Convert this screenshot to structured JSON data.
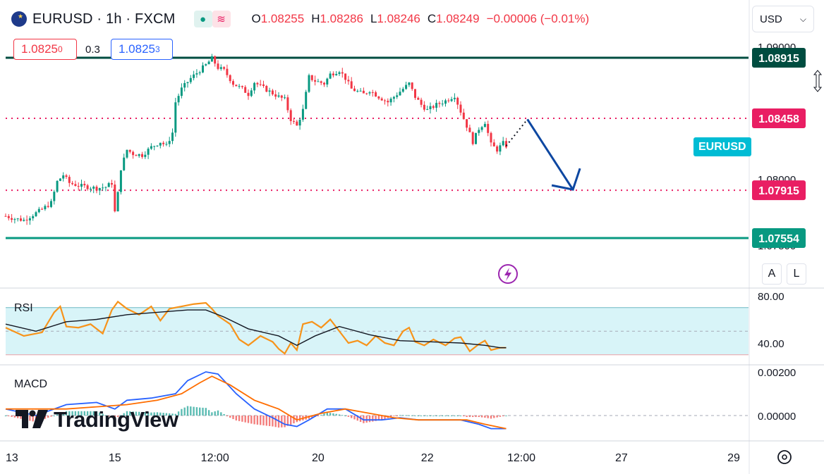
{
  "header": {
    "symbol": "EURUSD · 1h · FXCM",
    "o_key": "O",
    "o_val": "1.08255",
    "h_key": "H",
    "h_val": "1.08286",
    "l_key": "L",
    "l_val": "1.08246",
    "c_key": "C",
    "c_val": "1.08249",
    "change": "−0.00006 (−0.01%)",
    "pill_a": "●",
    "pill_b": "≋"
  },
  "quote": {
    "sell": "1.0825",
    "sell_sup": "0",
    "spread": "0.3",
    "buy": "1.0825",
    "buy_sup": "3"
  },
  "currency_select": {
    "value": "USD",
    "icon": "chevron-down-icon"
  },
  "scale_buttons": {
    "auto": "A",
    "log": "L"
  },
  "symbol_tag": "EURUSD",
  "logo_text": "TradingView",
  "colors": {
    "up": "#089981",
    "down": "#f23645",
    "rsi": "#f7931a",
    "macd": "#2962ff",
    "signal": "#ff6d00",
    "arrow": "#0d47a1",
    "level_dark": "#004d40",
    "level_dotted": "#e91e63",
    "level_green": "#089981",
    "rsi_band": "#d8f4f8",
    "tag": "#00bcd4"
  },
  "chart_data": [
    {
      "type": "candlestick",
      "title": "EURUSD · 1h · FXCM",
      "x_tick_labels": [
        "13",
        "15",
        "12:00",
        "20",
        "22",
        "12:00",
        "27",
        "29"
      ],
      "y_tick_labels": [
        "1.09000",
        "1.08000",
        "1.07500"
      ],
      "ylim": [
        1.0737,
        1.0912
      ],
      "price_levels": [
        {
          "value": 1.08915,
          "label": "1.08915",
          "style": "solid-dark"
        },
        {
          "value": 1.08458,
          "label": "1.08458",
          "style": "dotted"
        },
        {
          "value": 1.07915,
          "label": "1.07915",
          "style": "dotted"
        },
        {
          "value": 1.07554,
          "label": "1.07554",
          "style": "solid-green"
        }
      ],
      "close_path": [
        [
          0,
          1.0772
        ],
        [
          3,
          1.077
        ],
        [
          6,
          1.0769
        ],
        [
          9,
          1.0773
        ],
        [
          12,
          1.0777
        ],
        [
          15,
          1.0782
        ],
        [
          17,
          1.0798
        ],
        [
          19,
          1.0803
        ],
        [
          21,
          1.0797
        ],
        [
          24,
          1.0795
        ],
        [
          27,
          1.0794
        ],
        [
          30,
          1.0793
        ],
        [
          33,
          1.0794
        ],
        [
          35,
          1.0797
        ],
        [
          36,
          1.0775
        ],
        [
          37,
          1.0789
        ],
        [
          38,
          1.0808
        ],
        [
          40,
          1.0822
        ],
        [
          42,
          1.0819
        ],
        [
          45,
          1.0818
        ],
        [
          48,
          1.0824
        ],
        [
          51,
          1.0828
        ],
        [
          53,
          1.0825
        ],
        [
          55,
          1.0835
        ],
        [
          56,
          1.0858
        ],
        [
          58,
          1.0868
        ],
        [
          61,
          1.0876
        ],
        [
          64,
          1.0882
        ],
        [
          66,
          1.0886
        ],
        [
          68,
          1.0891
        ],
        [
          70,
          1.0884
        ],
        [
          72,
          1.0882
        ],
        [
          75,
          1.0872
        ],
        [
          78,
          1.0868
        ],
        [
          80,
          1.0864
        ],
        [
          82,
          1.0873
        ],
        [
          84,
          1.087
        ],
        [
          87,
          1.0866
        ],
        [
          90,
          1.0862
        ],
        [
          92,
          1.086
        ],
        [
          94,
          1.0845
        ],
        [
          96,
          1.084
        ],
        [
          98,
          1.0852
        ],
        [
          100,
          1.0877
        ],
        [
          102,
          1.0874
        ],
        [
          105,
          1.0872
        ],
        [
          107,
          1.0879
        ],
        [
          110,
          1.0882
        ],
        [
          112,
          1.0876
        ],
        [
          114,
          1.0868
        ],
        [
          116,
          1.0866
        ],
        [
          118,
          1.0864
        ],
        [
          120,
          1.0867
        ],
        [
          123,
          1.0862
        ],
        [
          126,
          1.0858
        ],
        [
          128,
          1.0862
        ],
        [
          131,
          1.0868
        ],
        [
          133,
          1.0872
        ],
        [
          135,
          1.0862
        ],
        [
          137,
          1.0856
        ],
        [
          139,
          1.0852
        ],
        [
          142,
          1.0856
        ],
        [
          145,
          1.0859
        ],
        [
          148,
          1.0863
        ],
        [
          150,
          1.0851
        ],
        [
          152,
          1.084
        ],
        [
          154,
          1.0828
        ],
        [
          156,
          1.0838
        ],
        [
          158,
          1.0843
        ],
        [
          160,
          1.0826
        ],
        [
          162,
          1.0822
        ],
        [
          164,
          1.0827
        ],
        [
          165,
          1.0825
        ]
      ],
      "projection": {
        "from": [
          165,
          1.0825
        ],
        "dot_to": [
          172,
          1.0845
        ],
        "arrow_to": [
          187,
          1.0792
        ]
      }
    },
    {
      "type": "line",
      "title": "RSI",
      "y_tick_labels": [
        "80.00",
        "40.00"
      ],
      "ylim": [
        25,
        85
      ],
      "band": [
        30,
        70
      ],
      "midline": 50,
      "series": [
        {
          "role": "rsi",
          "values": [
            [
              0,
              53
            ],
            [
              6,
              46
            ],
            [
              12,
              49
            ],
            [
              16,
              66
            ],
            [
              18,
              71
            ],
            [
              20,
              54
            ],
            [
              24,
              53
            ],
            [
              28,
              56
            ],
            [
              32,
              48
            ],
            [
              35,
              68
            ],
            [
              37,
              75
            ],
            [
              40,
              69
            ],
            [
              44,
              64
            ],
            [
              48,
              71
            ],
            [
              51,
              59
            ],
            [
              54,
              69
            ],
            [
              58,
              71
            ],
            [
              62,
              73
            ],
            [
              66,
              74
            ],
            [
              68,
              69
            ],
            [
              70,
              63
            ],
            [
              74,
              56
            ],
            [
              77,
              43
            ],
            [
              80,
              38
            ],
            [
              84,
              46
            ],
            [
              88,
              41
            ],
            [
              90,
              35
            ],
            [
              92,
              31
            ],
            [
              94,
              40
            ],
            [
              96,
              34
            ],
            [
              98,
              56
            ],
            [
              101,
              58
            ],
            [
              104,
              53
            ],
            [
              107,
              60
            ],
            [
              110,
              50
            ],
            [
              113,
              40
            ],
            [
              116,
              42
            ],
            [
              119,
              38
            ],
            [
              122,
              46
            ],
            [
              125,
              40
            ],
            [
              128,
              38
            ],
            [
              131,
              50
            ],
            [
              133,
              53
            ],
            [
              135,
              41
            ],
            [
              138,
              38
            ],
            [
              141,
              43
            ],
            [
              145,
              38
            ],
            [
              148,
              44
            ],
            [
              150,
              45
            ],
            [
              153,
              33
            ],
            [
              156,
              39
            ],
            [
              158,
              42
            ],
            [
              160,
              34
            ],
            [
              163,
              36
            ],
            [
              165,
              36
            ]
          ]
        },
        {
          "role": "signal",
          "values": [
            [
              0,
              56
            ],
            [
              10,
              50
            ],
            [
              20,
              58
            ],
            [
              30,
              60
            ],
            [
              40,
              64
            ],
            [
              50,
              66
            ],
            [
              60,
              68
            ],
            [
              66,
              68
            ],
            [
              72,
              62
            ],
            [
              80,
              52
            ],
            [
              90,
              46
            ],
            [
              96,
              38
            ],
            [
              102,
              46
            ],
            [
              110,
              54
            ],
            [
              120,
              47
            ],
            [
              130,
              42
            ],
            [
              140,
              41
            ],
            [
              150,
              40
            ],
            [
              158,
              38
            ],
            [
              163,
              36
            ],
            [
              165,
              36
            ]
          ]
        }
      ]
    },
    {
      "type": "macd",
      "title": "MACD",
      "y_tick_labels": [
        "0.00200",
        "0.00000"
      ],
      "ylim": [
        -0.0009,
        0.0024
      ],
      "series": [
        {
          "role": "macd",
          "values": [
            [
              0,
              0.0003
            ],
            [
              10,
              0.0
            ],
            [
              20,
              0.0005
            ],
            [
              30,
              0.0006
            ],
            [
              36,
              0.0003
            ],
            [
              40,
              0.0007
            ],
            [
              48,
              0.0008
            ],
            [
              56,
              0.001
            ],
            [
              60,
              0.0016
            ],
            [
              66,
              0.002
            ],
            [
              70,
              0.0019
            ],
            [
              76,
              0.001
            ],
            [
              82,
              0.0003
            ],
            [
              88,
              -0.0001
            ],
            [
              92,
              -0.0004
            ],
            [
              96,
              -0.0005
            ],
            [
              100,
              -0.0002
            ],
            [
              106,
              0.0003
            ],
            [
              112,
              0.0003
            ],
            [
              118,
              -0.0002
            ],
            [
              124,
              -0.0002
            ],
            [
              130,
              -0.0001
            ],
            [
              136,
              -0.0002
            ],
            [
              142,
              -0.0002
            ],
            [
              150,
              -0.0002
            ],
            [
              156,
              -0.0004
            ],
            [
              160,
              -0.0006
            ],
            [
              165,
              -0.0006
            ]
          ]
        },
        {
          "role": "signal",
          "values": [
            [
              0,
              0.0003
            ],
            [
              10,
              0.0003
            ],
            [
              20,
              0.0003
            ],
            [
              30,
              0.0004
            ],
            [
              40,
              0.0005
            ],
            [
              50,
              0.0007
            ],
            [
              58,
              0.001
            ],
            [
              64,
              0.0015
            ],
            [
              68,
              0.0018
            ],
            [
              74,
              0.0014
            ],
            [
              82,
              0.0007
            ],
            [
              90,
              0.0003
            ],
            [
              96,
              -0.0002
            ],
            [
              104,
              0.0001
            ],
            [
              112,
              0.0003
            ],
            [
              120,
              0.0001
            ],
            [
              128,
              -0.0001
            ],
            [
              136,
              -0.0002
            ],
            [
              144,
              -0.0002
            ],
            [
              152,
              -0.0002
            ],
            [
              158,
              -0.0004
            ],
            [
              165,
              -0.0006
            ]
          ]
        }
      ]
    }
  ]
}
